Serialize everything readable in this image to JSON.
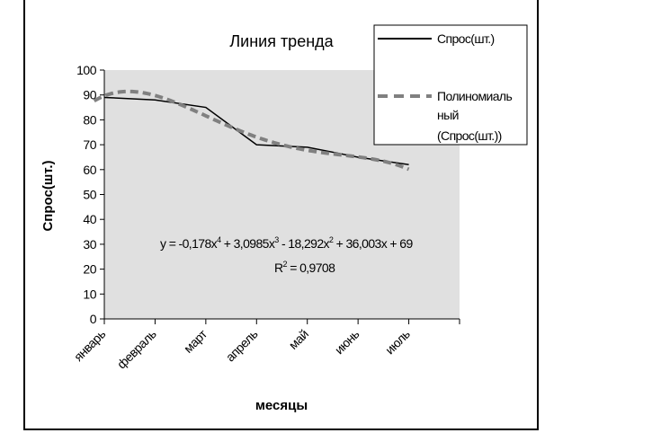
{
  "chart_data": {
    "type": "line",
    "title": "Линия тренда",
    "xlabel": "месяцы",
    "ylabel": "Спрос(шт.)",
    "categories": [
      "январь",
      "февраль",
      "март",
      "апрель",
      "май",
      "июнь",
      "июль"
    ],
    "ylim": [
      0,
      100
    ],
    "yticks": [
      0,
      10,
      20,
      30,
      40,
      50,
      60,
      70,
      80,
      90,
      100
    ],
    "grid": false,
    "plot_background": "#e0e0e0",
    "legend_position": "top-right",
    "series": [
      {
        "name": "Спрос(шт.)",
        "style": "solid",
        "color": "#000000",
        "values": [
          89,
          88,
          85,
          70,
          69,
          65,
          62
        ]
      },
      {
        "name": "Полиномиальный (Спрос(шт.))",
        "legend_lines": [
          "Полиномиаль",
          "ный",
          "(Спрос(шт.))"
        ],
        "style": "dashed",
        "color": "#808080",
        "coefficients": [
          -0.178,
          3.0985,
          -18.292,
          36.003,
          69
        ]
      }
    ],
    "annotations": {
      "equation": {
        "prefix": "y = -0,178x",
        "e1": "4",
        "part2": " + 3,0985x",
        "e2": "3",
        "part3": " - 18,292x",
        "e3": "2",
        "part4": " + 36,003x + 69"
      },
      "r2": {
        "prefix": "R",
        "exp": "2",
        "rest": " = 0,9708"
      }
    }
  }
}
